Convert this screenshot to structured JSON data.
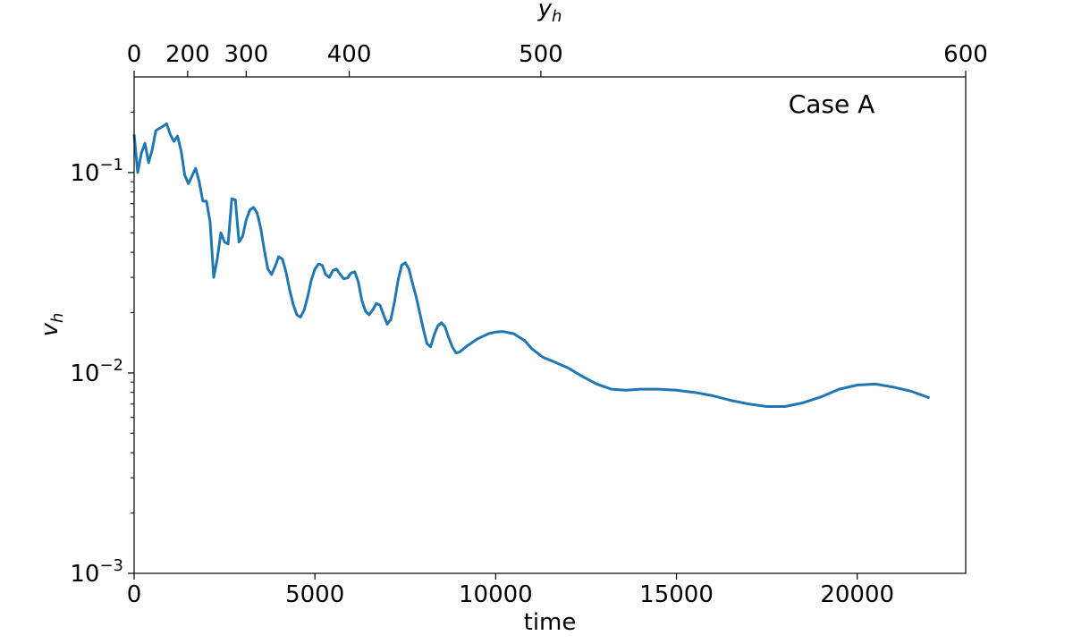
{
  "chart_data": {
    "type": "line",
    "annotation": "Case A",
    "xlabel": "time",
    "ylabel_main": "v",
    "ylabel_sub": "h",
    "top_xlabel_main": "y",
    "top_xlabel_sub": "h",
    "xlim": [
      0,
      23000
    ],
    "ylim": [
      0.001,
      0.3
    ],
    "yscale": "log",
    "x_ticks": [
      0,
      5000,
      10000,
      15000,
      20000
    ],
    "x_tick_labels": [
      "0",
      "5000",
      "10000",
      "15000",
      "20000"
    ],
    "y_ticks": [
      0.001,
      0.01,
      0.1
    ],
    "y_tick_base": "10",
    "y_tick_exponents": [
      "−3",
      "−2",
      "−1"
    ],
    "top_ticks": [
      {
        "label": "0",
        "time": 0
      },
      {
        "label": "200",
        "time": 1480
      },
      {
        "label": "300",
        "time": 3100
      },
      {
        "label": "400",
        "time": 5950
      },
      {
        "label": "500",
        "time": 11250
      },
      {
        "label": "600",
        "time": 23000
      }
    ],
    "line_color": "#1f77b4",
    "series": [
      {
        "x": [
          0,
          100,
          200,
          300,
          400,
          500,
          600,
          750,
          900,
          1000,
          1100,
          1200,
          1300,
          1400,
          1500,
          1600,
          1700,
          1800,
          1900,
          2000,
          2100,
          2200,
          2300,
          2400,
          2500,
          2600,
          2700,
          2800,
          2900,
          3000,
          3100,
          3200,
          3300,
          3400,
          3500,
          3600,
          3700,
          3800,
          3900,
          4000,
          4100,
          4200,
          4300,
          4400,
          4500,
          4600,
          4700,
          4800,
          4900,
          5000,
          5100,
          5200,
          5300,
          5400,
          5500,
          5600,
          5700,
          5800,
          5900,
          6000,
          6100,
          6200,
          6300,
          6400,
          6500,
          6600,
          6700,
          6800,
          6900,
          7000,
          7100,
          7200,
          7300,
          7400,
          7500,
          7600,
          7700,
          7800,
          7900,
          8000,
          8100,
          8200,
          8300,
          8400,
          8500,
          8600,
          8700,
          8800,
          8900,
          9000,
          9200,
          9500,
          9800,
          10000,
          10200,
          10500,
          10800,
          11000,
          11300,
          11600,
          12000,
          12400,
          12800,
          13200,
          13600,
          14000,
          14500,
          15000,
          15500,
          16000,
          16500,
          17000,
          17500,
          18000,
          18500,
          19000,
          19500,
          20000,
          20500,
          21000,
          21500,
          22000
        ],
        "y": [
          0.155,
          0.1,
          0.125,
          0.14,
          0.112,
          0.13,
          0.162,
          0.168,
          0.175,
          0.155,
          0.143,
          0.152,
          0.128,
          0.097,
          0.088,
          0.096,
          0.105,
          0.09,
          0.072,
          0.072,
          0.057,
          0.03,
          0.037,
          0.05,
          0.045,
          0.044,
          0.074,
          0.073,
          0.045,
          0.048,
          0.058,
          0.065,
          0.067,
          0.063,
          0.053,
          0.041,
          0.033,
          0.031,
          0.034,
          0.038,
          0.037,
          0.032,
          0.026,
          0.022,
          0.0195,
          0.019,
          0.0205,
          0.024,
          0.029,
          0.033,
          0.035,
          0.0345,
          0.031,
          0.03,
          0.0325,
          0.033,
          0.031,
          0.0295,
          0.0298,
          0.0315,
          0.032,
          0.0285,
          0.023,
          0.0203,
          0.0195,
          0.0207,
          0.0222,
          0.0218,
          0.0195,
          0.0175,
          0.0185,
          0.0225,
          0.029,
          0.0345,
          0.0355,
          0.033,
          0.028,
          0.024,
          0.02,
          0.0165,
          0.014,
          0.0135,
          0.0155,
          0.0172,
          0.0178,
          0.017,
          0.015,
          0.0135,
          0.0126,
          0.0127,
          0.0136,
          0.0148,
          0.0157,
          0.016,
          0.0161,
          0.0157,
          0.0145,
          0.0132,
          0.012,
          0.0114,
          0.0106,
          0.0096,
          0.0088,
          0.0083,
          0.0082,
          0.0083,
          0.0083,
          0.0082,
          0.008,
          0.0077,
          0.0073,
          0.007,
          0.0068,
          0.0068,
          0.0071,
          0.0076,
          0.0083,
          0.0087,
          0.0088,
          0.0085,
          0.0081,
          0.0075
        ]
      }
    ]
  }
}
